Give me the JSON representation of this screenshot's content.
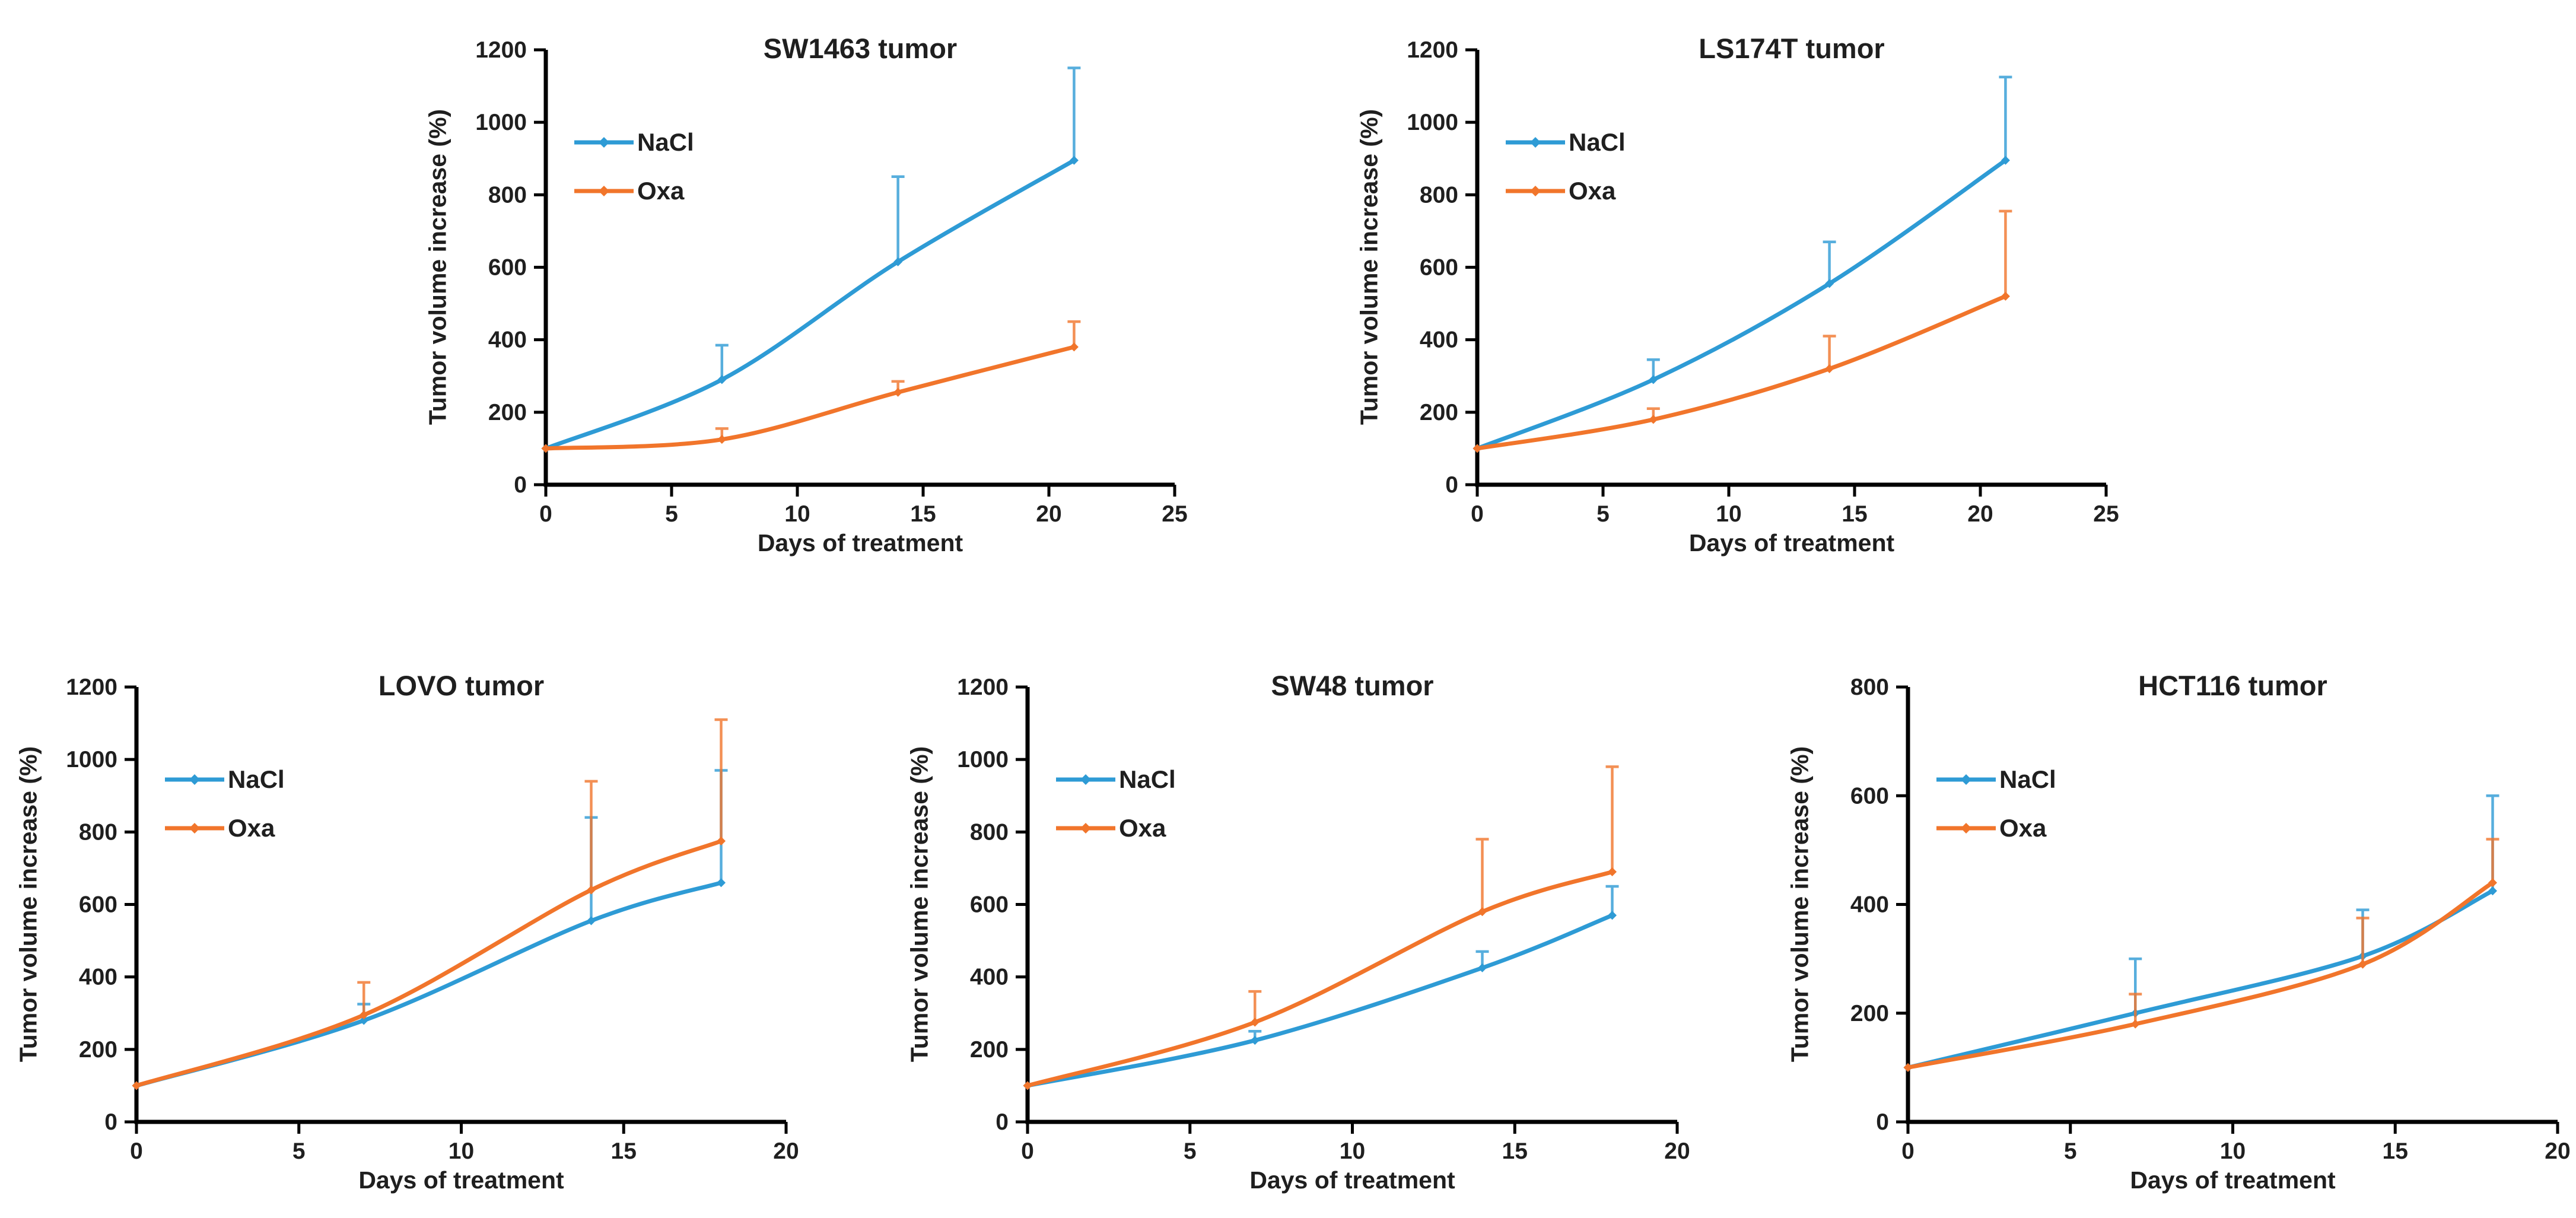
{
  "figure": {
    "description": "Five line charts of tumor volume increase over days of treatment for mouse xenografts treated with NaCl or Oxa",
    "text_color": "#1f1f1f",
    "axis_color": "#000000",
    "background": "#ffffff"
  },
  "legend": {
    "items": [
      "NaCl",
      "Oxa"
    ]
  },
  "colors": {
    "nacl": "#2E9BD5",
    "oxa": "#F1752B"
  },
  "chart_data": [
    {
      "type": "line",
      "title": "SW1463 tumor",
      "xlabel": "Days of treatment",
      "ylabel": "Tumor volume increase (%)",
      "xlim": [
        0,
        25
      ],
      "xticks": [
        0,
        5,
        10,
        15,
        20,
        25
      ],
      "ylim": [
        0,
        1200
      ],
      "ytick_step": 200,
      "grid": false,
      "legend_position": "upper-left-inside",
      "x": [
        0,
        7,
        14,
        21
      ],
      "series": [
        {
          "name": "NaCl",
          "color": "#2E9BD5",
          "values": [
            100,
            290,
            615,
            895
          ],
          "err_up": [
            0,
            95,
            235,
            255
          ]
        },
        {
          "name": "Oxa",
          "color": "#F1752B",
          "values": [
            100,
            125,
            255,
            380
          ],
          "err_up": [
            0,
            30,
            30,
            70
          ]
        }
      ]
    },
    {
      "type": "line",
      "title": "LS174T tumor",
      "xlabel": "Days of treatment",
      "ylabel": "Tumor volume increase (%)",
      "xlim": [
        0,
        25
      ],
      "xticks": [
        0,
        5,
        10,
        15,
        20,
        25
      ],
      "ylim": [
        0,
        1200
      ],
      "ytick_step": 200,
      "grid": false,
      "legend_position": "upper-left-inside",
      "x": [
        0,
        7,
        14,
        21
      ],
      "series": [
        {
          "name": "NaCl",
          "color": "#2E9BD5",
          "values": [
            100,
            290,
            555,
            895
          ],
          "err_up": [
            0,
            55,
            115,
            230
          ]
        },
        {
          "name": "Oxa",
          "color": "#F1752B",
          "values": [
            100,
            180,
            320,
            520
          ],
          "err_up": [
            0,
            30,
            90,
            235
          ]
        }
      ]
    },
    {
      "type": "line",
      "title": "LOVO tumor",
      "xlabel": "Days of treatment",
      "ylabel": "Tumor volume increase (%)",
      "xlim": [
        0,
        20
      ],
      "xticks": [
        0,
        5,
        10,
        15,
        20
      ],
      "ylim": [
        0,
        1200
      ],
      "ytick_step": 200,
      "grid": false,
      "legend_position": "upper-left-inside",
      "x": [
        0,
        7,
        14,
        18
      ],
      "series": [
        {
          "name": "NaCl",
          "color": "#2E9BD5",
          "values": [
            100,
            280,
            555,
            660
          ],
          "err_up": [
            0,
            45,
            285,
            310
          ]
        },
        {
          "name": "Oxa",
          "color": "#F1752B",
          "values": [
            100,
            295,
            640,
            775
          ],
          "err_up": [
            0,
            90,
            300,
            335
          ]
        }
      ]
    },
    {
      "type": "line",
      "title": "SW48 tumor",
      "xlabel": "Days of treatment",
      "ylabel": "Tumor volume increase (%)",
      "xlim": [
        0,
        20
      ],
      "xticks": [
        0,
        5,
        10,
        15,
        20
      ],
      "ylim": [
        0,
        1200
      ],
      "ytick_step": 200,
      "grid": false,
      "legend_position": "upper-left-inside",
      "x": [
        0,
        7,
        14,
        18
      ],
      "series": [
        {
          "name": "NaCl",
          "color": "#2E9BD5",
          "values": [
            100,
            225,
            425,
            570
          ],
          "err_up": [
            0,
            25,
            45,
            80
          ]
        },
        {
          "name": "Oxa",
          "color": "#F1752B",
          "values": [
            100,
            275,
            580,
            690
          ],
          "err_up": [
            0,
            85,
            200,
            290
          ]
        }
      ]
    },
    {
      "type": "line",
      "title": "HCT116 tumor",
      "xlabel": "Days of treatment",
      "ylabel": "Tumor volume increase (%)",
      "xlim": [
        0,
        20
      ],
      "xticks": [
        0,
        5,
        10,
        15,
        20
      ],
      "ylim": [
        0,
        800
      ],
      "ytick_step": 200,
      "grid": false,
      "legend_position": "upper-left-inside",
      "x": [
        0,
        7,
        14,
        18
      ],
      "series": [
        {
          "name": "NaCl",
          "color": "#2E9BD5",
          "values": [
            100,
            200,
            305,
            425
          ],
          "err_up": [
            0,
            100,
            85,
            175
          ]
        },
        {
          "name": "Oxa",
          "color": "#F1752B",
          "values": [
            100,
            180,
            290,
            440
          ],
          "err_up": [
            0,
            55,
            85,
            80
          ]
        }
      ]
    }
  ]
}
